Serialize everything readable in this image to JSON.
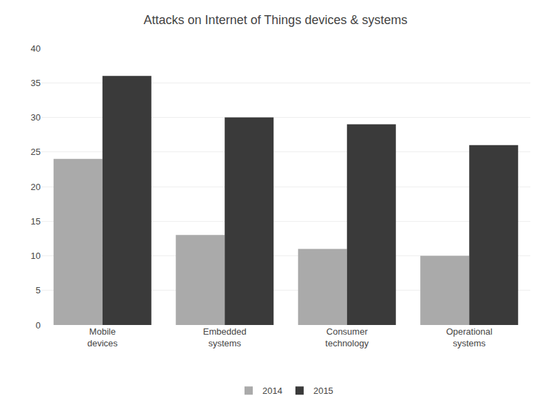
{
  "chart_data": {
    "type": "bar",
    "title": "Attacks on Internet of Things devices & systems",
    "categories": [
      "Mobile\ndevices",
      "Embedded\nsystems",
      "Consumer\ntechnology",
      "Operational\nsystems"
    ],
    "series": [
      {
        "name": "2014",
        "color": "#aaaaaa",
        "values": [
          24,
          13,
          11,
          10
        ]
      },
      {
        "name": "2015",
        "color": "#3a3a3a",
        "values": [
          36,
          30,
          29,
          26
        ]
      }
    ],
    "ylim": [
      0,
      40
    ],
    "yticks": [
      0,
      5,
      10,
      15,
      20,
      25,
      30,
      35,
      40
    ],
    "grid": true,
    "legend": "bottom"
  }
}
